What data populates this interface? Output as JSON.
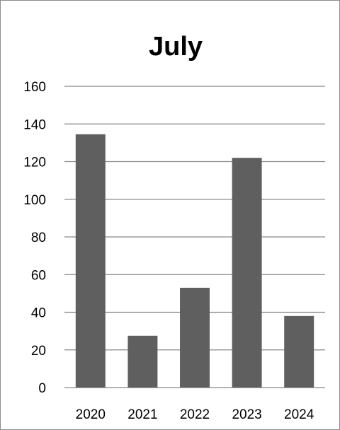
{
  "chart_data": {
    "type": "bar",
    "title": "July",
    "xlabel": "",
    "ylabel": "",
    "categories": [
      "2020",
      "2021",
      "2022",
      "2023",
      "2024"
    ],
    "values": [
      134.5,
      27.5,
      53,
      122,
      38
    ],
    "ylim": [
      0,
      160
    ],
    "yticks": [
      0,
      20,
      40,
      60,
      80,
      100,
      120,
      140,
      160
    ],
    "grid": true,
    "legend": "none",
    "colors": {
      "bar": "#5f5f5f",
      "grid": "#868686",
      "text": "#000000",
      "border": "#8c8c8c"
    }
  }
}
